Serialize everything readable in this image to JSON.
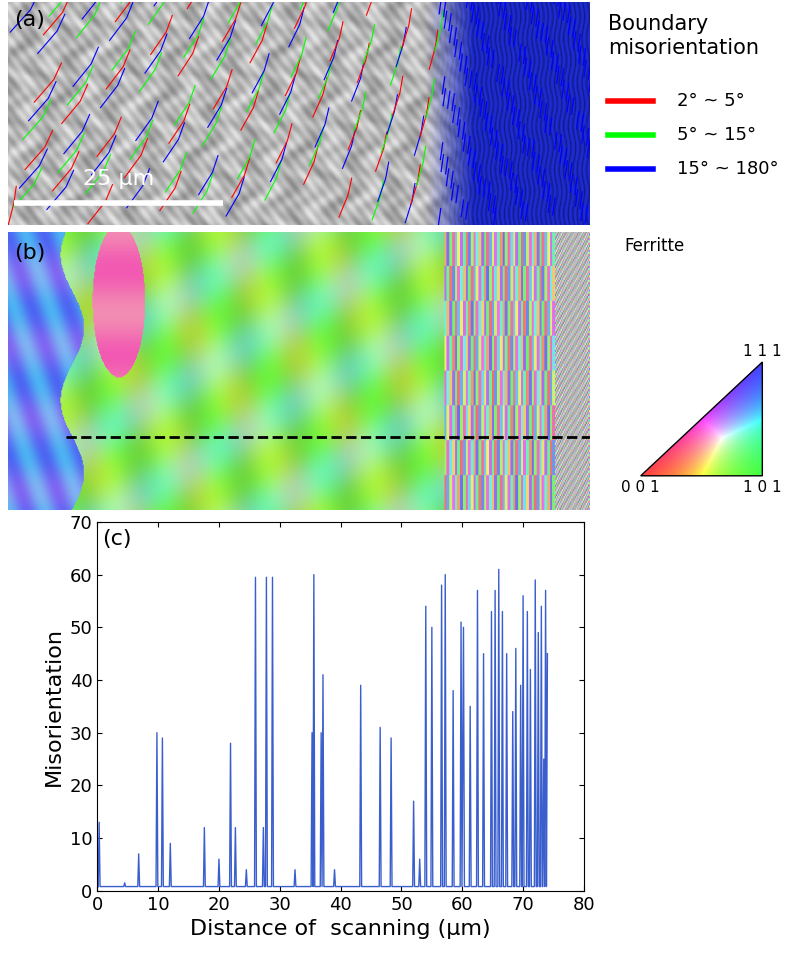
{
  "panel_a": {
    "label": "(a)",
    "scale_bar": "25 μm",
    "legend_title": "Boundary\nmisorientation",
    "legend": [
      {
        "name": "2° ~ 5°",
        "color": "#ff0000"
      },
      {
        "name": "5° ~ 15°",
        "color": "#00ff00"
      },
      {
        "name": "15° ~ 180°",
        "color": "#0000ff"
      }
    ]
  },
  "panel_b": {
    "label": "(b)",
    "phase": "Ferritte",
    "ipf_corners": {
      "top": "1 1 1",
      "left": "0 0 1",
      "right": "1 0 1"
    }
  },
  "chart_data": {
    "type": "line",
    "label": "(c)",
    "x_label": "Distance of  scanning (μm)",
    "y_label": "Misorientation",
    "xlim": [
      0,
      80
    ],
    "ylim": [
      0,
      70
    ],
    "xticks": [
      0,
      10,
      20,
      30,
      40,
      50,
      60,
      70,
      80
    ],
    "yticks": [
      0,
      10,
      20,
      30,
      40,
      50,
      60,
      70
    ],
    "x": [
      0,
      0.15,
      0.3,
      0.45,
      4.35,
      4.5,
      4.65,
      6.65,
      6.8,
      6.95,
      9.65,
      9.8,
      9.95,
      10.55,
      10.7,
      10.85,
      11.85,
      12,
      12.15,
      17.45,
      17.6,
      17.75,
      19.85,
      20,
      20.15,
      21.75,
      21.9,
      22.05,
      22.55,
      22.7,
      22.85,
      24.35,
      24.5,
      24.65,
      25.85,
      26,
      26.15,
      27.15,
      27.3,
      27.45,
      27.65,
      27.8,
      27.95,
      28.65,
      28.8,
      28.95,
      32.35,
      32.5,
      32.65,
      35.15,
      35.3,
      35.45,
      35.6,
      35.75,
      36.65,
      36.8,
      36.95,
      37.1,
      37.25,
      38.85,
      39,
      39.15,
      43.15,
      43.3,
      43.45,
      46.35,
      46.5,
      46.65,
      48.15,
      48.3,
      48.45,
      51.85,
      52,
      52.15,
      52.85,
      53,
      53.15,
      53.85,
      54,
      54.15,
      54.85,
      55,
      55.15,
      56.45,
      56.6,
      56.75,
      57.05,
      57.2,
      57.35,
      58.35,
      58.5,
      58.65,
      59.65,
      59.8,
      59.95,
      60.2,
      60.35,
      61.15,
      61.3,
      61.45,
      62.35,
      62.5,
      62.65,
      63.35,
      63.5,
      63.65,
      64.65,
      64.8,
      64.95,
      65.25,
      65.4,
      65.55,
      65.85,
      66,
      66.15,
      66.45,
      66.6,
      66.75,
      67.15,
      67.3,
      67.45,
      68.15,
      68.3,
      68.45,
      68.65,
      68.8,
      68.95,
      69.45,
      69.6,
      69.75,
      69.85,
      70,
      70.15,
      70.55,
      70.7,
      70.85,
      71.05,
      71.2,
      71.35,
      71.85,
      72,
      72.15,
      72.35,
      72.5,
      72.65,
      72.85,
      73,
      73.15,
      73.25,
      73.4,
      73.55,
      73.7,
      73.85,
      74
    ],
    "series": [
      {
        "color": "#3a5fcd",
        "values": [
          0.5,
          0.8,
          13,
          0.8,
          0.8,
          1.5,
          0.8,
          0.8,
          7,
          0.8,
          0.8,
          30,
          0.8,
          0.8,
          29,
          0.8,
          0.8,
          9,
          0.8,
          0.8,
          12,
          0.8,
          0.8,
          6,
          0.8,
          0.8,
          28,
          0.8,
          0.8,
          12,
          0.8,
          0.8,
          4,
          0.8,
          0.8,
          59.5,
          0.8,
          0.8,
          12,
          0.8,
          0.8,
          59.5,
          0.8,
          0.8,
          59.5,
          0.8,
          0.8,
          4,
          0.8,
          0.8,
          30,
          0.8,
          60,
          0.8,
          0.8,
          30,
          0.8,
          41,
          0.8,
          0.8,
          4,
          0.8,
          0.8,
          39,
          0.8,
          0.8,
          31,
          0.8,
          0.8,
          29,
          0.8,
          0.8,
          17,
          0.8,
          0.8,
          6,
          0.8,
          0.8,
          54,
          0.8,
          0.8,
          50,
          0.8,
          0.8,
          58,
          0.8,
          0.8,
          60,
          0.8,
          0.8,
          38,
          0.8,
          0.8,
          51,
          0.8,
          50,
          0.8,
          0.8,
          35,
          0.8,
          0.8,
          57,
          0.8,
          0.8,
          45,
          0.8,
          0.8,
          53,
          0.8,
          0.8,
          57,
          0.8,
          0.8,
          61,
          0.8,
          0.8,
          53,
          0.8,
          0.8,
          45,
          0.8,
          0.8,
          34,
          0.8,
          0.8,
          46,
          0.8,
          0.8,
          39,
          0.8,
          0.8,
          56,
          0.8,
          0.8,
          53,
          0.8,
          0.8,
          42,
          0.8,
          0.8,
          59,
          0.8,
          0.8,
          49,
          0.8,
          0.8,
          54,
          0.8,
          0.8,
          25,
          0.8,
          57,
          0.8,
          45
        ]
      }
    ]
  }
}
